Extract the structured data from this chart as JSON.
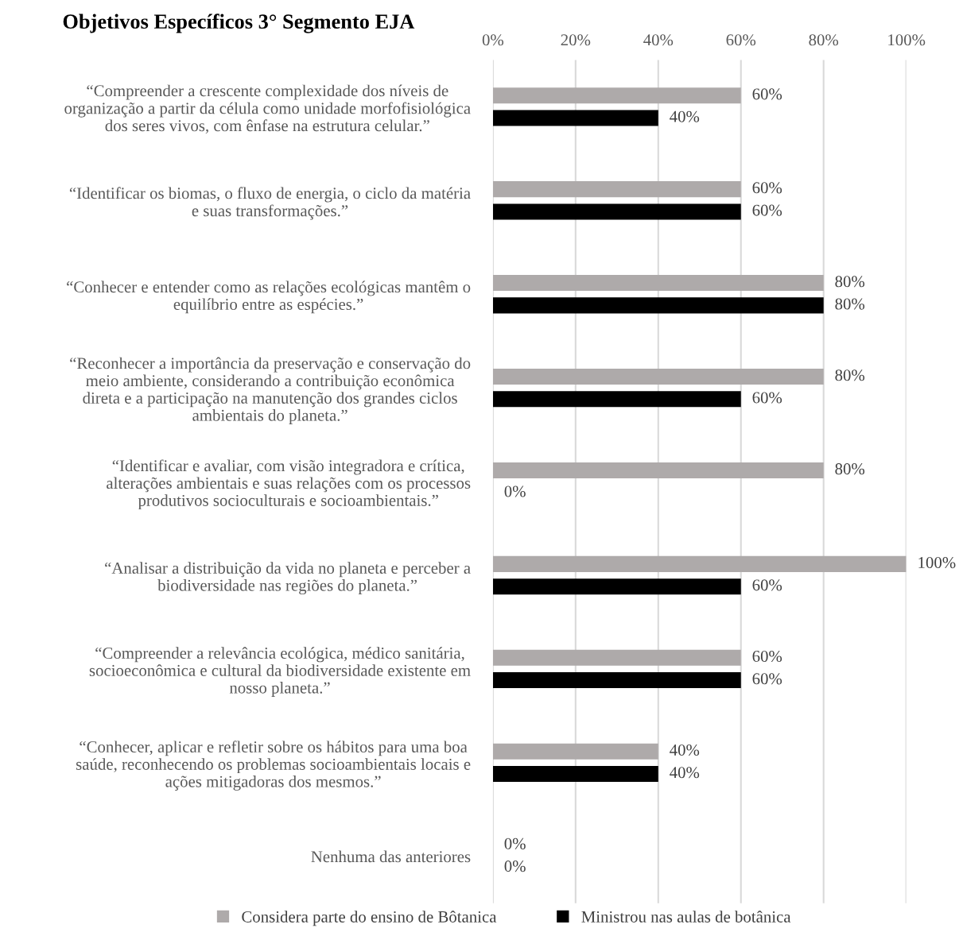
{
  "chart_data": {
    "type": "bar",
    "orientation": "horizontal",
    "title": "Objetivos Específicos 3° Segmento EJA",
    "categories": [
      "“Compreender a crescente complexidade dos níveis de\norganização a partir da célula como unidade morfofisiológica\ndos seres vivos, com ênfase na estrutura celular.”",
      "“Identificar os biomas, o fluxo de energia, o ciclo da matéria\ne suas transformações.”",
      "“Conhecer e entender como as relações ecológicas mantêm o\nequilíbrio entre as espécies.”",
      "“Reconhecer a importância da preservação e conservação do\nmeio ambiente, considerando a contribuição econômica\ndireta e a participação na manutenção dos grandes ciclos\nambientais do planeta.”",
      "“Identificar e avaliar, com visão integradora e crítica,\nalterações ambientais e suas relações com os processos\nprodutivos socioculturais e socioambientais.”",
      "“Analisar a distribuição da vida no planeta e perceber a\nbiodiversidade nas regiões do planeta.”",
      "“Compreender a relevância ecológica, médico sanitária,\nsocioeconômica e cultural da biodiversidade existente em\nnosso planeta.”",
      "“Conhecer, aplicar e refletir sobre os hábitos para uma boa\nsaúde, reconhecendo os problemas socioambientais locais e\nações mitigadoras dos mesmos.”",
      "Nenhuma das anteriores"
    ],
    "series": [
      {
        "name": "Considera parte do ensino de Bôtanica",
        "color": "#aeaaaa",
        "values": [
          60,
          60,
          80,
          80,
          80,
          100,
          60,
          40,
          0
        ],
        "value_labels": [
          "60%",
          "60%",
          "80%",
          "80%",
          "80%",
          "100%",
          "60%",
          "40%",
          "0%"
        ]
      },
      {
        "name": "Ministrou nas aulas de botânica",
        "color": "#000000",
        "values": [
          40,
          60,
          80,
          60,
          0,
          60,
          60,
          40,
          0
        ],
        "value_labels": [
          "40%",
          "60%",
          "80%",
          "60%",
          "0%",
          "60%",
          "60%",
          "40%",
          "0%"
        ]
      }
    ],
    "xlim": [
      0,
      100
    ],
    "xticks": [
      {
        "value": 0,
        "label": "0%"
      },
      {
        "value": 20,
        "label": "20%"
      },
      {
        "value": 40,
        "label": "40%"
      },
      {
        "value": 60,
        "label": "60%"
      },
      {
        "value": 80,
        "label": "80%"
      },
      {
        "value": 100,
        "label": "100%"
      }
    ],
    "grid": "x",
    "legend": "bottom"
  }
}
